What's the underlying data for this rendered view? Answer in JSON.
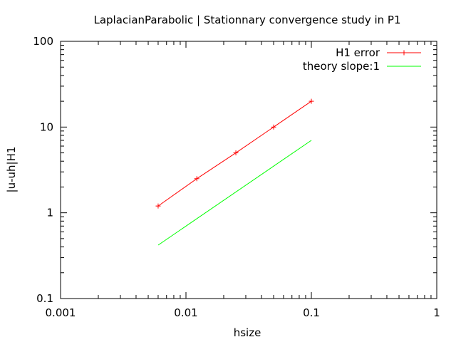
{
  "chart_data": {
    "type": "line",
    "title": "LaplacianParabolic | Stationnary convergence study in P1",
    "xlabel": "hsize",
    "ylabel": "|u-uh|H1",
    "xscale": "log",
    "yscale": "log",
    "xlim": [
      0.001,
      1
    ],
    "ylim": [
      0.1,
      100
    ],
    "xticks": [
      "0.001",
      "0.01",
      "0.1",
      "1"
    ],
    "yticks": [
      "0.1",
      "1",
      "10",
      "100"
    ],
    "grid": false,
    "legend_position": "top-right",
    "series": [
      {
        "name": "H1 error",
        "color": "#ff0000",
        "marker": "plus",
        "x": [
          0.006,
          0.0122,
          0.025,
          0.05,
          0.1
        ],
        "y": [
          1.2,
          2.5,
          5.0,
          10.0,
          20.0
        ]
      },
      {
        "name": "theory slope:1",
        "color": "#00ff00",
        "marker": "none",
        "x": [
          0.006,
          0.1
        ],
        "y": [
          0.42,
          7.0
        ]
      }
    ]
  }
}
